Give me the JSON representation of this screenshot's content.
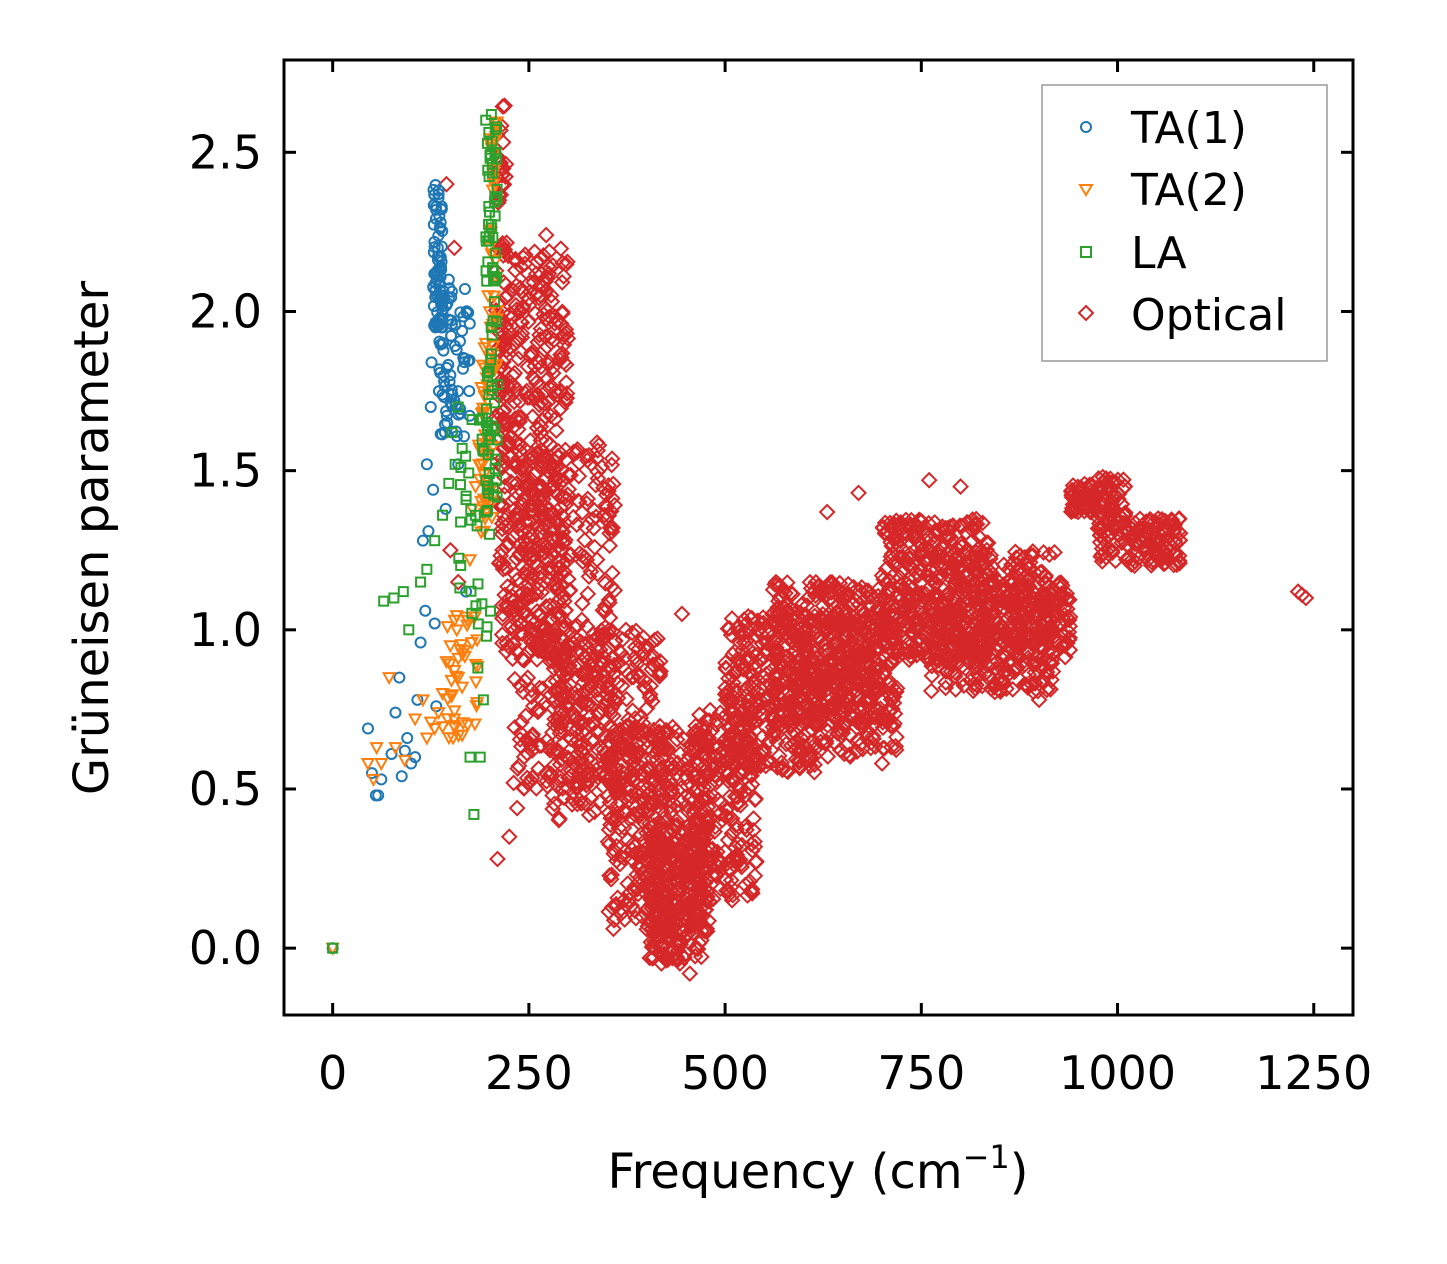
{
  "chart_data": {
    "type": "scatter",
    "title": "",
    "xlabel": "Frequency (cm",
    "xlabel_superscript": "−1",
    "xlabel_suffix": ")",
    "ylabel": "Grüneisen parameter",
    "xlim": [
      -62,
      1300
    ],
    "ylim": [
      -0.21,
      2.79
    ],
    "xticks": [
      0,
      250,
      500,
      750,
      1000,
      1250
    ],
    "xtick_labels": [
      "0",
      "250",
      "500",
      "750",
      "1000",
      "1250"
    ],
    "yticks": [
      0.0,
      0.5,
      1.0,
      1.5,
      2.0,
      2.5
    ],
    "ytick_labels": [
      "0.0",
      "0.5",
      "1.0",
      "1.5",
      "2.0",
      "2.5"
    ],
    "grid": false,
    "legend_position": "top-right",
    "legend": [
      "TA(1)",
      "TA(2)",
      "LA",
      "Optical"
    ],
    "series": [
      {
        "name": "TA(1)",
        "marker": "circle",
        "color": "#1f77b4",
        "points": [
          [
            0,
            0.0
          ],
          [
            45,
            0.69
          ],
          [
            50,
            0.55
          ],
          [
            55,
            0.48
          ],
          [
            58,
            0.48
          ],
          [
            62,
            0.53
          ],
          [
            75,
            0.61
          ],
          [
            80,
            0.74
          ],
          [
            85,
            0.85
          ],
          [
            88,
            0.54
          ],
          [
            92,
            0.62
          ],
          [
            95,
            0.66
          ],
          [
            100,
            0.58
          ],
          [
            105,
            0.6
          ],
          [
            108,
            0.78
          ],
          [
            112,
            0.96
          ],
          [
            115,
            1.28
          ],
          [
            118,
            1.06
          ],
          [
            120,
            1.52
          ],
          [
            122,
            1.31
          ],
          [
            125,
            1.7
          ],
          [
            126,
            1.84
          ],
          [
            128,
            1.44
          ],
          [
            130,
            1.02
          ],
          [
            131,
            1.95
          ],
          [
            132,
            0.76
          ],
          [
            133,
            2.05
          ],
          [
            134,
            2.2
          ],
          [
            135,
            2.38
          ],
          [
            136,
            2.3
          ],
          [
            137,
            2.26
          ],
          [
            138,
            2.14
          ],
          [
            139,
            2.33
          ],
          [
            140,
            2.0
          ],
          [
            141,
            1.9
          ],
          [
            142,
            1.78
          ],
          [
            143,
            1.62
          ],
          [
            144,
            1.38
          ],
          [
            146,
            1.65
          ],
          [
            148,
            2.1
          ],
          [
            150,
            1.8
          ],
          [
            152,
            1.96
          ],
          [
            155,
            1.72
          ],
          [
            158,
            1.88
          ],
          [
            160,
            1.52
          ],
          [
            163,
            1.68
          ],
          [
            166,
            1.82
          ],
          [
            170,
            1.12
          ],
          [
            174,
            1.75
          ]
        ],
        "clusters": [
          [
            128,
            140,
            1.95,
            2.4,
            60
          ],
          [
            135,
            175,
            1.6,
            2.1,
            70
          ]
        ]
      },
      {
        "name": "TA(2)",
        "marker": "triangle-down",
        "color": "#ff7f0e",
        "points": [
          [
            0,
            0.0
          ],
          [
            45,
            0.58
          ],
          [
            52,
            0.53
          ],
          [
            56,
            0.63
          ],
          [
            62,
            0.58
          ],
          [
            72,
            0.85
          ],
          [
            80,
            0.63
          ],
          [
            92,
            0.59
          ],
          [
            105,
            0.72
          ],
          [
            115,
            0.78
          ],
          [
            120,
            0.66
          ],
          [
            125,
            0.71
          ],
          [
            130,
            0.69
          ],
          [
            135,
            0.74
          ],
          [
            140,
            0.8
          ],
          [
            145,
            0.9
          ],
          [
            150,
            0.95
          ],
          [
            155,
            0.72
          ],
          [
            160,
            0.85
          ],
          [
            165,
            0.82
          ],
          [
            170,
            1.04
          ],
          [
            175,
            1.22
          ],
          [
            178,
            1.38
          ],
          [
            182,
            1.45
          ],
          [
            186,
            1.58
          ],
          [
            190,
            1.68
          ],
          [
            195,
            1.9
          ],
          [
            198,
            2.05
          ],
          [
            202,
            2.25
          ],
          [
            205,
            2.4
          ],
          [
            208,
            2.55
          ]
        ],
        "clusters": [
          [
            140,
            185,
            0.65,
            1.05,
            40
          ],
          [
            185,
            205,
            1.3,
            1.9,
            50
          ],
          [
            200,
            210,
            1.8,
            2.6,
            30
          ]
        ]
      },
      {
        "name": "LA",
        "marker": "square",
        "color": "#2ca02c",
        "points": [
          [
            0,
            0.0
          ],
          [
            65,
            1.09
          ],
          [
            78,
            1.1
          ],
          [
            90,
            1.12
          ],
          [
            97,
            1.0
          ],
          [
            112,
            1.15
          ],
          [
            120,
            1.19
          ],
          [
            130,
            1.28
          ],
          [
            140,
            1.36
          ],
          [
            148,
            1.46
          ],
          [
            152,
            1.62
          ],
          [
            156,
            1.52
          ],
          [
            160,
            1.7
          ],
          [
            165,
            1.57
          ],
          [
            170,
            1.42
          ],
          [
            175,
            0.6
          ],
          [
            180,
            0.42
          ],
          [
            185,
            0.88
          ],
          [
            188,
            0.6
          ],
          [
            192,
            0.78
          ],
          [
            196,
            0.98
          ],
          [
            200,
            1.3
          ],
          [
            202,
            1.95
          ],
          [
            205,
            2.1
          ],
          [
            207,
            2.3
          ],
          [
            208,
            2.5
          ],
          [
            209,
            2.58
          ]
        ],
        "clusters": [
          [
            195,
            210,
            1.4,
            2.62,
            70
          ],
          [
            160,
            205,
            1.0,
            1.7,
            35
          ]
        ]
      },
      {
        "name": "Optical",
        "marker": "diamond",
        "color": "#d62728",
        "points": [
          [
            145,
            2.4
          ],
          [
            155,
            2.2
          ],
          [
            150,
            1.25
          ],
          [
            160,
            1.15
          ],
          [
            210,
            0.28
          ],
          [
            225,
            0.35
          ],
          [
            235,
            0.44
          ],
          [
            250,
            0.52
          ],
          [
            272,
            2.24
          ],
          [
            340,
            0.9
          ],
          [
            390,
            0.94
          ],
          [
            410,
            0.02
          ],
          [
            420,
            0.0
          ],
          [
            455,
            -0.08
          ],
          [
            445,
            1.05
          ],
          [
            480,
            0.6
          ],
          [
            520,
            0.55
          ],
          [
            570,
            1.1
          ],
          [
            600,
            0.62
          ],
          [
            630,
            1.37
          ],
          [
            650,
            0.8
          ],
          [
            670,
            1.43
          ],
          [
            700,
            0.58
          ],
          [
            760,
            1.47
          ],
          [
            800,
            1.45
          ],
          [
            850,
            0.85
          ],
          [
            900,
            0.78
          ],
          [
            930,
            0.95
          ],
          [
            1235,
            1.11
          ],
          [
            1240,
            1.1
          ],
          [
            1230,
            1.12
          ]
        ],
        "clusters": [
          [
            208,
            222,
            1.2,
            2.65,
            80
          ],
          [
            215,
            300,
            0.9,
            2.2,
            420
          ],
          [
            230,
            360,
            0.5,
            1.6,
            380
          ],
          [
            280,
            420,
            0.4,
            1.0,
            260
          ],
          [
            350,
            480,
            0.05,
            0.7,
            420
          ],
          [
            400,
            470,
            -0.05,
            0.35,
            220
          ],
          [
            460,
            540,
            0.15,
            0.75,
            220
          ],
          [
            500,
            620,
            0.55,
            1.05,
            320
          ],
          [
            560,
            700,
            0.7,
            1.15,
            380
          ],
          [
            620,
            720,
            0.6,
            1.05,
            220
          ],
          [
            700,
            840,
            0.9,
            1.35,
            420
          ],
          [
            760,
            920,
            0.8,
            1.25,
            380
          ],
          [
            850,
            940,
            0.9,
            1.15,
            160
          ],
          [
            940,
            975,
            1.37,
            1.46,
            60
          ],
          [
            975,
            1010,
            1.2,
            1.48,
            90
          ],
          [
            1010,
            1080,
            1.2,
            1.35,
            110
          ]
        ]
      }
    ]
  }
}
